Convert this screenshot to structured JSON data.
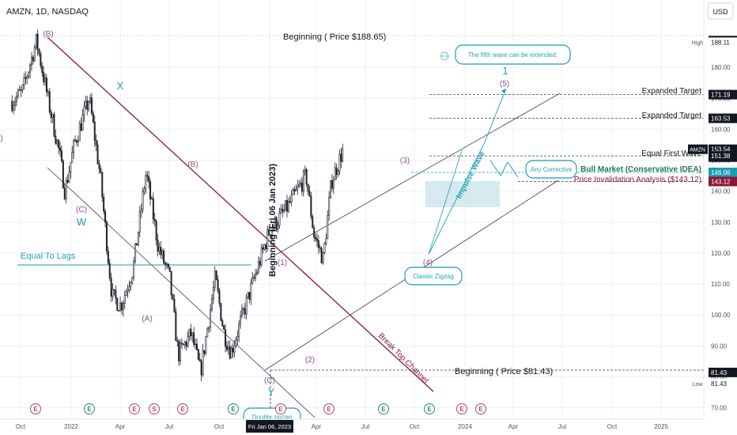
{
  "header": {
    "symbol_line": "AMZN, 1D, NASDAQ",
    "currency": "USD"
  },
  "colors": {
    "candle": "#1e222d",
    "grid": "#eef0f3",
    "channel": "#3c3f48",
    "red_channel": "#8a1738",
    "wave_label": "#8b4f8f",
    "teal": "#1f9cb0",
    "teal_text": "#22a5b5",
    "zone": "#c8e3ea",
    "axis_text": "#50535e",
    "price_tag_dark": "#131722"
  },
  "chart_data": {
    "type": "candlestick",
    "title": "AMZN, 1D, NASDAQ",
    "ylim": [
      65,
      192
    ],
    "y_ticks": [
      70,
      80,
      90,
      100,
      110,
      120,
      130,
      140,
      150,
      160,
      170,
      180
    ],
    "x_tick_labels": [
      "Oct",
      "2022",
      "Apr",
      "Jul",
      "Oct",
      "Fri Jan 06, 2023",
      "Apr",
      "Jul",
      "Oct",
      "2024",
      "Apr",
      "Jul",
      "Oct",
      "2025"
    ],
    "price_path": [
      {
        "date": "2021-09-20",
        "close": 169
      },
      {
        "date": "2021-10-15",
        "close": 172
      },
      {
        "date": "2021-11-19",
        "close": 188.65
      },
      {
        "date": "2021-12-20",
        "close": 168
      },
      {
        "date": "2022-01-15",
        "close": 152
      },
      {
        "date": "2022-01-28",
        "close": 140
      },
      {
        "date": "2022-02-20",
        "close": 155
      },
      {
        "date": "2022-03-29",
        "close": 170
      },
      {
        "date": "2022-04-25",
        "close": 145
      },
      {
        "date": "2022-05-24",
        "close": 106
      },
      {
        "date": "2022-06-15",
        "close": 103
      },
      {
        "date": "2022-07-15",
        "close": 115
      },
      {
        "date": "2022-08-16",
        "close": 146
      },
      {
        "date": "2022-09-15",
        "close": 122
      },
      {
        "date": "2022-10-13",
        "close": 112
      },
      {
        "date": "2022-11-03",
        "close": 87
      },
      {
        "date": "2022-12-05",
        "close": 94
      },
      {
        "date": "2022-12-28",
        "close": 81.43
      },
      {
        "date": "2023-02-02",
        "close": 112
      },
      {
        "date": "2023-02-24",
        "close": 94
      },
      {
        "date": "2023-03-13",
        "close": 88
      },
      {
        "date": "2023-04-18",
        "close": 103
      },
      {
        "date": "2023-06-15",
        "close": 127
      },
      {
        "date": "2023-07-31",
        "close": 135
      },
      {
        "date": "2023-09-14",
        "close": 145
      },
      {
        "date": "2023-10-03",
        "close": 126
      },
      {
        "date": "2023-10-26",
        "close": 118
      },
      {
        "date": "2023-11-15",
        "close": 143
      },
      {
        "date": "2023-12-14",
        "close": 153.5
      }
    ],
    "price_scale_labels": [
      {
        "value": 188.65,
        "text": "188.65",
        "style": "dark"
      },
      {
        "value": 188.11,
        "text": "188.11",
        "style": "plain",
        "side_label": "High"
      },
      {
        "value": 171.19,
        "text": "171.19",
        "style": "dark"
      },
      {
        "value": 163.53,
        "text": "163.53",
        "style": "dark"
      },
      {
        "value": 153.54,
        "text": "153.54",
        "style": "dark",
        "side_label": "AMZN",
        "sub": "04:25:41"
      },
      {
        "value": 151.38,
        "text": "151.38",
        "style": "dark"
      },
      {
        "value": 146.06,
        "text": "146.06",
        "style": "teal"
      },
      {
        "value": 143.12,
        "text": "143.12",
        "style": "red"
      },
      {
        "value": 81.43,
        "text": "81.43",
        "style": "dark"
      },
      {
        "value": 81.43,
        "text": "81.43",
        "style": "plain",
        "side_label": "Low",
        "offset": 14
      }
    ],
    "levels": [
      {
        "value": 188.65,
        "label": "Beginning ( Price $188.65)"
      },
      {
        "value": 171.19,
        "label": "Expanded Target"
      },
      {
        "value": 163.53,
        "label": "Expanded Target"
      },
      {
        "value": 151.38,
        "label": "Equal First Wave"
      },
      {
        "value": 146.06,
        "label": "Bull Market (Conservative IDEA)"
      },
      {
        "value": 143.12,
        "label": "Price Invalidation Analysis ($143.12)"
      },
      {
        "value": 81.43,
        "label": "Beginning ( Price $81.43)"
      }
    ],
    "annotations": {
      "equal_to_lags": "Equal To Lags",
      "vertical_beginning": "Beginning (Fri 06 Jan 2023)",
      "break_top_channel": "Break Top Channel",
      "impulse_wave": "Impulse Wave",
      "fifth_wave_note": "The fifth wave can be extended.",
      "any_corrective": "Any Corrective",
      "classic_zigzag": "Classic Zigzag",
      "double_zigzag": "Double zigzag"
    },
    "wave_labels": [
      "(B)",
      "X",
      "(C)",
      "W",
      "(B)",
      "(A)",
      "(C)",
      "Y",
      "(1)",
      "(2)",
      "(3)",
      "(4)",
      "(5)",
      "1",
      ")"
    ],
    "event_markers": [
      "E",
      "E",
      "E",
      "S",
      "E",
      "E",
      "E",
      "E",
      "E",
      "E",
      "E",
      "E"
    ]
  }
}
